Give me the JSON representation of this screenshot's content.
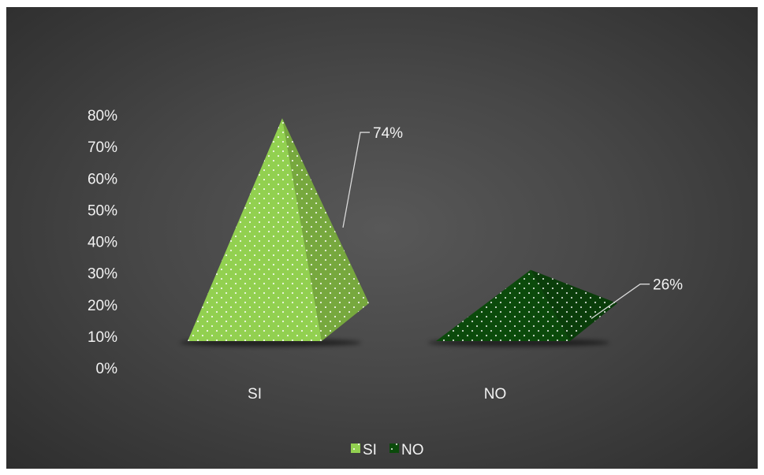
{
  "chart_data": {
    "type": "bar",
    "style": "3d-pyramid",
    "categories": [
      "SI",
      "NO"
    ],
    "series": [
      {
        "values": [
          0.74,
          0.26
        ]
      }
    ],
    "data_labels": [
      "74%",
      "26%"
    ],
    "y_ticks": [
      "0%",
      "10%",
      "20%",
      "30%",
      "40%",
      "50%",
      "60%",
      "70%",
      "80%"
    ],
    "ylim": [
      0,
      0.8
    ],
    "legend": {
      "position": "bottom",
      "entries": [
        "SI",
        "NO"
      ]
    },
    "colors": {
      "SI": "#92d050",
      "NO": "#0b4a0b",
      "background": "#404040",
      "text": "#f2f2f2"
    },
    "grid": false
  }
}
